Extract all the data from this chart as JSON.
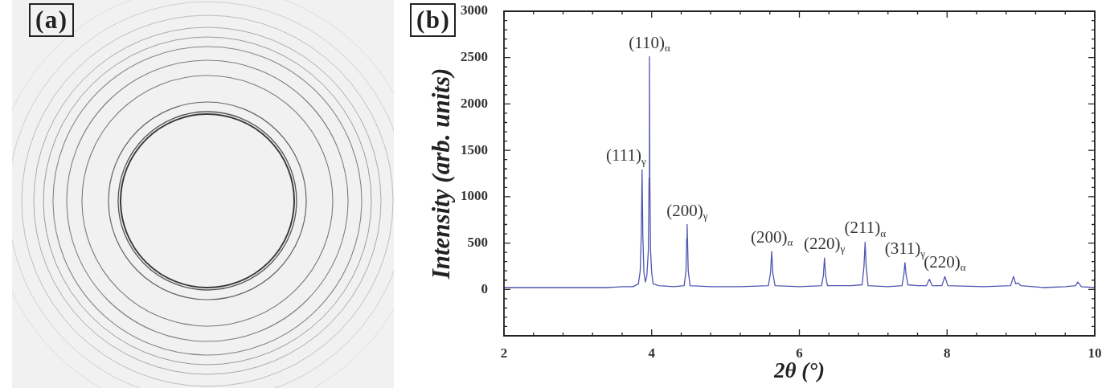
{
  "chart_data": [
    {
      "type": "other",
      "annotations": [
        "(a)"
      ]
    },
    {
      "type": "line",
      "xlabel": "2θ (°)",
      "ylabel": "Intensity (arb. units)",
      "annotations": [
        "(b)",
        {
          "text": "(111)$_{γ}$",
          "x": 3.87,
          "y": 1290
        },
        {
          "text": "(110)$_{α}$",
          "x": 3.97,
          "y": 2510
        },
        {
          "text": "(200)$_{γ}$",
          "x": 4.48,
          "y": 700
        },
        {
          "text": "(200)$_{α}$",
          "x": 5.625,
          "y": 410
        },
        {
          "text": "(220)$_{γ}$",
          "x": 6.34,
          "y": 340
        },
        {
          "text": "(211)$_{α}$",
          "x": 6.89,
          "y": 510
        },
        {
          "text": "(311)$_{γ}$",
          "x": 7.43,
          "y": 290
        },
        {
          "text": "(220)$_{α}$",
          "x": 7.97,
          "y": 140
        }
      ],
      "x": [
        2.0,
        2.5,
        3.0,
        3.4,
        3.6,
        3.75,
        3.82,
        3.845,
        3.86,
        3.87,
        3.88,
        3.895,
        3.915,
        3.935,
        3.955,
        3.965,
        3.97,
        3.975,
        3.985,
        4.0,
        4.02,
        4.1,
        4.3,
        4.44,
        4.465,
        4.475,
        4.48,
        4.485,
        4.495,
        4.52,
        4.8,
        5.2,
        5.58,
        5.61,
        5.625,
        5.64,
        5.67,
        6.0,
        6.3,
        6.325,
        6.34,
        6.355,
        6.38,
        6.7,
        6.85,
        6.875,
        6.89,
        6.905,
        6.93,
        7.2,
        7.39,
        7.415,
        7.43,
        7.445,
        7.47,
        7.6,
        7.72,
        7.76,
        7.8,
        7.93,
        7.97,
        8.01,
        8.5,
        8.86,
        8.9,
        8.93,
        8.96,
        9.0,
        9.3,
        9.6,
        9.74,
        9.77,
        9.82,
        10.0
      ],
      "values": [
        20,
        20,
        20,
        20,
        30,
        30,
        60,
        200,
        600,
        1290,
        600,
        180,
        80,
        150,
        420,
        1200,
        2510,
        1200,
        420,
        180,
        60,
        40,
        30,
        40,
        200,
        550,
        700,
        550,
        200,
        40,
        30,
        30,
        40,
        180,
        410,
        180,
        40,
        30,
        40,
        150,
        340,
        150,
        40,
        40,
        50,
        250,
        510,
        250,
        40,
        30,
        40,
        160,
        290,
        160,
        50,
        40,
        40,
        110,
        40,
        40,
        140,
        40,
        30,
        40,
        140,
        60,
        70,
        40,
        20,
        30,
        40,
        80,
        30,
        20
      ],
      "color": "#4f56b0",
      "line_style": "solid",
      "xlim": [
        2,
        10
      ],
      "xticks": [
        2,
        {
          "value": 2.4,
          "label": null
        },
        {
          "value": 2.8,
          "label": null
        },
        {
          "value": 3.2,
          "label": null
        },
        {
          "value": 3.6,
          "label": null
        },
        4,
        {
          "value": 4.4,
          "label": null
        },
        {
          "value": 4.8,
          "label": null
        },
        {
          "value": 5.2,
          "label": null
        },
        {
          "value": 5.6,
          "label": null
        },
        6,
        {
          "value": 6.4,
          "label": null
        },
        {
          "value": 6.8,
          "label": null
        },
        {
          "value": 7.2,
          "label": null
        },
        {
          "value": 7.6,
          "label": null
        },
        8,
        {
          "value": 8.4,
          "label": null
        },
        {
          "value": 8.8,
          "label": null
        },
        {
          "value": 9.2,
          "label": null
        },
        {
          "value": 9.6,
          "label": null
        },
        10
      ],
      "ylim": [
        -500,
        3000
      ],
      "yticks": [
        {
          "value": -400,
          "label": null
        },
        {
          "value": -300,
          "label": null
        },
        {
          "value": -200,
          "label": null
        },
        {
          "value": -100,
          "label": null
        },
        0,
        {
          "value": 100,
          "label": null
        },
        {
          "value": 200,
          "label": null
        },
        {
          "value": 300,
          "label": null
        },
        {
          "value": 400,
          "label": null
        },
        500,
        {
          "value": 600,
          "label": null
        },
        {
          "value": 700,
          "label": null
        },
        {
          "value": 800,
          "label": null
        },
        {
          "value": 900,
          "label": null
        },
        1000,
        {
          "value": 1100,
          "label": null
        },
        {
          "value": 1200,
          "label": null
        },
        {
          "value": 1300,
          "label": null
        },
        {
          "value": 1400,
          "label": null
        },
        1500,
        {
          "value": 1600,
          "label": null
        },
        {
          "value": 1700,
          "label": null
        },
        {
          "value": 1800,
          "label": null
        },
        {
          "value": 1900,
          "label": null
        },
        2000,
        {
          "value": 2100,
          "label": null
        },
        {
          "value": 2200,
          "label": null
        },
        {
          "value": 2300,
          "label": null
        },
        {
          "value": 2400,
          "label": null
        },
        2500,
        {
          "value": 2600,
          "label": null
        },
        {
          "value": 2700,
          "label": null
        },
        {
          "value": 2800,
          "label": null
        },
        {
          "value": 2900,
          "label": null
        },
        3000
      ]
    }
  ]
}
